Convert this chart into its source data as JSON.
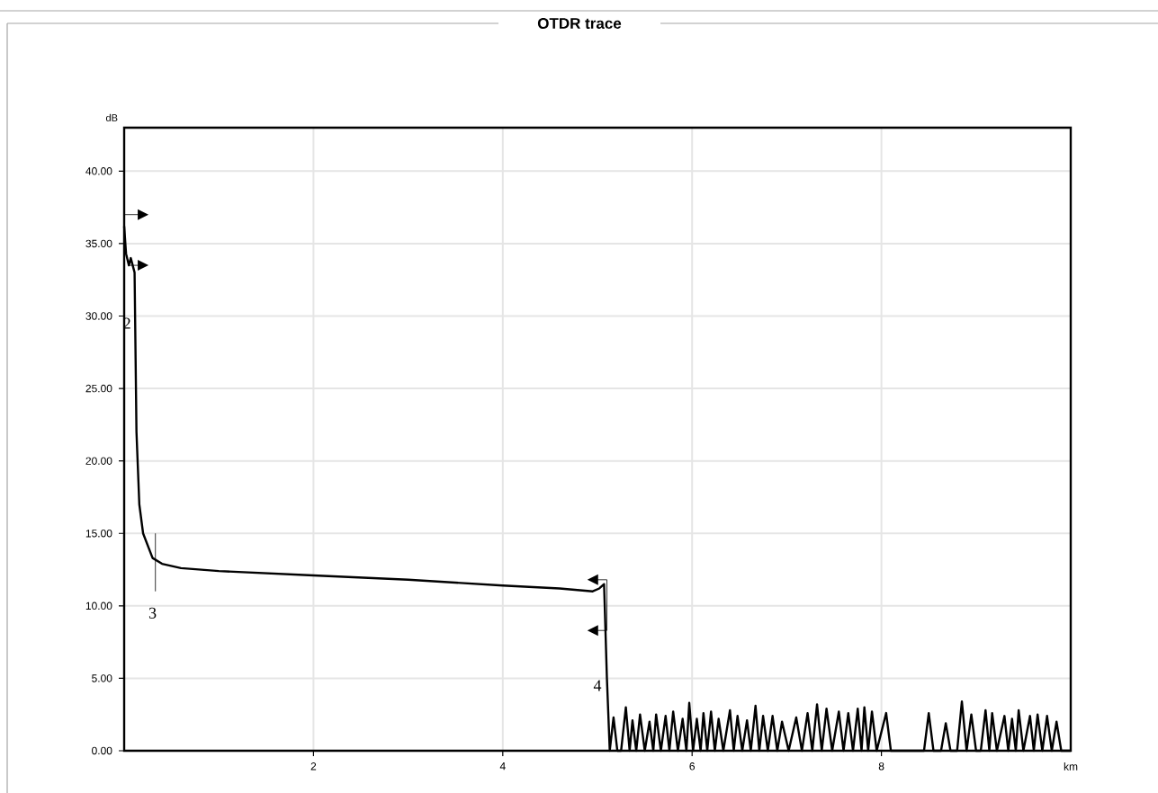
{
  "chart_data": {
    "type": "line",
    "title": "OTDR trace",
    "xlabel": "km",
    "ylabel": "dB",
    "xlim": [
      0,
      10
    ],
    "ylim": [
      0,
      43
    ],
    "xticks": [
      2,
      4,
      6,
      8
    ],
    "yticks": [
      {
        "value": 0,
        "label": "0.00"
      },
      {
        "value": 5,
        "label": "5.00"
      },
      {
        "value": 10,
        "label": "10.00"
      },
      {
        "value": 15,
        "label": "15.00"
      },
      {
        "value": 20,
        "label": "20.00"
      },
      {
        "value": 25,
        "label": "25.00"
      },
      {
        "value": 30,
        "label": "30.00"
      },
      {
        "value": 35,
        "label": "35.00"
      },
      {
        "value": 40,
        "label": "40.00"
      }
    ],
    "grid": true,
    "marker": "none",
    "line_style": "solid",
    "annotations": [
      "2",
      "3",
      "4"
    ],
    "series": [
      {
        "color": "#000000",
        "x": [
          0,
          0.02,
          0.05,
          0.07,
          0.09,
          0.11,
          0.13,
          0.16,
          0.2,
          0.3,
          0.4,
          0.6,
          1,
          2,
          3,
          4,
          4.6,
          4.95,
          5.02,
          5.07,
          5.1,
          5.13,
          5.17,
          5.21,
          5.25,
          5.3,
          5.34,
          5.37,
          5.41,
          5.45,
          5.5,
          5.55,
          5.59,
          5.62,
          5.67,
          5.72,
          5.76,
          5.8,
          5.85,
          5.9,
          5.94,
          5.97,
          6.01,
          6.05,
          6.09,
          6.12,
          6.16,
          6.2,
          6.24,
          6.28,
          6.33,
          6.4,
          6.44,
          6.48,
          6.53,
          6.58,
          6.62,
          6.67,
          6.71,
          6.75,
          6.8,
          6.85,
          6.9,
          6.95,
          7.02,
          7.1,
          7.16,
          7.22,
          7.27,
          7.32,
          7.37,
          7.42,
          7.48,
          7.55,
          7.6,
          7.65,
          7.7,
          7.75,
          7.79,
          7.82,
          7.86,
          7.9,
          7.95,
          8.05,
          8.1,
          8.45,
          8.5,
          8.55,
          8.63,
          8.68,
          8.73,
          8.8,
          8.85,
          8.9,
          8.95,
          9.0,
          9.05,
          9.1,
          9.14,
          9.17,
          9.22,
          9.3,
          9.34,
          9.38,
          9.42,
          9.45,
          9.5,
          9.57,
          9.61,
          9.65,
          9.7,
          9.75,
          9.8,
          9.85,
          9.9,
          10
        ],
        "values": [
          36.2,
          34.3,
          33.5,
          34,
          33.5,
          33,
          22,
          17,
          15,
          13.3,
          12.9,
          12.6,
          12.4,
          12.1,
          11.8,
          11.4,
          11.2,
          11.0,
          11.2,
          11.5,
          5,
          0,
          2.3,
          0,
          0,
          3.0,
          0,
          2.1,
          0,
          2.5,
          0,
          2.0,
          0,
          2.5,
          0,
          2.4,
          0,
          2.7,
          0,
          2.2,
          0,
          3.3,
          0,
          2.2,
          0,
          2.6,
          0,
          2.7,
          0,
          2.2,
          0,
          2.8,
          0,
          2.4,
          0,
          2.1,
          0,
          3.1,
          0,
          2.4,
          0,
          2.4,
          0,
          2.0,
          0,
          2.3,
          0,
          2.6,
          0,
          3.2,
          0,
          2.9,
          0,
          2.7,
          0,
          2.6,
          0,
          2.9,
          0,
          3.0,
          0,
          2.7,
          0,
          2.6,
          0,
          0,
          2.6,
          0,
          0,
          1.9,
          0,
          0,
          3.4,
          0,
          2.5,
          0,
          0,
          2.8,
          0,
          2.6,
          0,
          2.4,
          0,
          2.2,
          0,
          2.8,
          0,
          2.4,
          0,
          2.5,
          0,
          2.4,
          0,
          2.0,
          0,
          0
        ]
      }
    ]
  }
}
